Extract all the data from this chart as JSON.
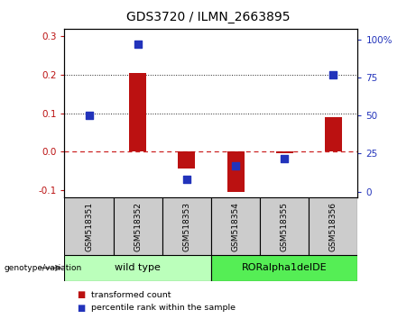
{
  "title": "GDS3720 / ILMN_2663895",
  "categories": [
    "GSM518351",
    "GSM518352",
    "GSM518353",
    "GSM518354",
    "GSM518355",
    "GSM518356"
  ],
  "bar_values": [
    0.0,
    0.205,
    -0.045,
    -0.105,
    -0.005,
    0.09
  ],
  "scatter_values_right": [
    50.0,
    97.0,
    8.0,
    17.0,
    22.0,
    77.0
  ],
  "ylim_left": [
    -0.12,
    0.32
  ],
  "ylim_right": [
    -4.0,
    107.0
  ],
  "yticks_left": [
    -0.1,
    0.0,
    0.1,
    0.2,
    0.3
  ],
  "yticks_right": [
    0,
    25,
    50,
    75,
    100
  ],
  "ytick_labels_right": [
    "0",
    "25",
    "50",
    "75",
    "100%"
  ],
  "bar_color": "#bb1111",
  "scatter_color": "#2233bb",
  "zero_line_color": "#cc2222",
  "dotted_line_color": "#222222",
  "group1_label": "wild type",
  "group2_label": "RORalpha1delDE",
  "group1_indices": [
    0,
    1,
    2
  ],
  "group2_indices": [
    3,
    4,
    5
  ],
  "group1_color": "#bbffbb",
  "group2_color": "#55ee55",
  "genotype_label": "genotype/variation",
  "legend_items": [
    "transformed count",
    "percentile rank within the sample"
  ],
  "legend_colors": [
    "#bb1111",
    "#2233bb"
  ],
  "bar_width": 0.35,
  "scatter_size": 35,
  "background_color": "#ffffff"
}
